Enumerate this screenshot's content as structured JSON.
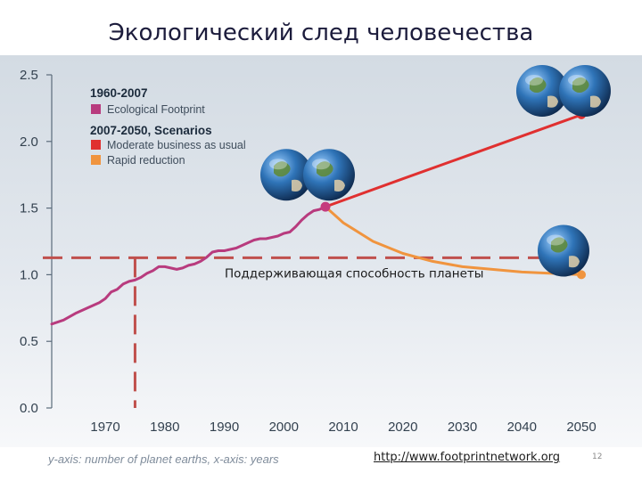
{
  "slide": {
    "title": "Экологический след человечества",
    "caption": "y-axis: number of planet earths, x-axis: years",
    "source_url": "http://www.footprintnetwork.org",
    "page_number": "12"
  },
  "chart_data": {
    "type": "line",
    "title": "",
    "xlabel": "",
    "ylabel": "",
    "xlim": [
      1961,
      2050
    ],
    "ylim": [
      0,
      2.5
    ],
    "x_ticks": [
      "1970",
      "1980",
      "1990",
      "2000",
      "2010",
      "2020",
      "2030",
      "2040",
      "2050"
    ],
    "y_ticks": [
      "0.0",
      "0.5",
      "1.0",
      "1.5",
      "2.0",
      "2.5"
    ],
    "legend": {
      "placement": "top-left",
      "groups": [
        {
          "heading": "1960-2007",
          "entries": [
            {
              "label": "Ecological Footprint",
              "color": "#b83b7e"
            }
          ]
        },
        {
          "heading": "2007-2050, Scenarios",
          "entries": [
            {
              "label": "Moderate business as usual",
              "color": "#e03030"
            },
            {
              "label": "Rapid reduction",
              "color": "#f0943e"
            }
          ]
        }
      ]
    },
    "series": [
      {
        "name": "Ecological Footprint",
        "color": "#b83b7e",
        "points": [
          [
            1961,
            0.63
          ],
          [
            1963,
            0.66
          ],
          [
            1965,
            0.71
          ],
          [
            1967,
            0.75
          ],
          [
            1969,
            0.79
          ],
          [
            1970,
            0.82
          ],
          [
            1971,
            0.87
          ],
          [
            1972,
            0.89
          ],
          [
            1973,
            0.93
          ],
          [
            1974,
            0.95
          ],
          [
            1975,
            0.96
          ],
          [
            1976,
            0.98
          ],
          [
            1977,
            1.01
          ],
          [
            1978,
            1.03
          ],
          [
            1979,
            1.06
          ],
          [
            1980,
            1.06
          ],
          [
            1981,
            1.05
          ],
          [
            1982,
            1.04
          ],
          [
            1983,
            1.05
          ],
          [
            1984,
            1.07
          ],
          [
            1985,
            1.08
          ],
          [
            1986,
            1.1
          ],
          [
            1987,
            1.13
          ],
          [
            1988,
            1.17
          ],
          [
            1989,
            1.18
          ],
          [
            1990,
            1.18
          ],
          [
            1991,
            1.19
          ],
          [
            1992,
            1.2
          ],
          [
            1993,
            1.22
          ],
          [
            1994,
            1.24
          ],
          [
            1995,
            1.26
          ],
          [
            1996,
            1.27
          ],
          [
            1997,
            1.27
          ],
          [
            1998,
            1.28
          ],
          [
            1999,
            1.29
          ],
          [
            2000,
            1.31
          ],
          [
            2001,
            1.32
          ],
          [
            2002,
            1.36
          ],
          [
            2003,
            1.41
          ],
          [
            2004,
            1.45
          ],
          [
            2005,
            1.48
          ],
          [
            2006,
            1.49
          ],
          [
            2007,
            1.51
          ]
        ]
      },
      {
        "name": "Moderate business as usual",
        "color": "#e03030",
        "points": [
          [
            2007,
            1.51
          ],
          [
            2020,
            1.72
          ],
          [
            2030,
            1.88
          ],
          [
            2040,
            2.04
          ],
          [
            2050,
            2.2
          ]
        ]
      },
      {
        "name": "Rapid reduction",
        "color": "#f0943e",
        "points": [
          [
            2007,
            1.51
          ],
          [
            2010,
            1.39
          ],
          [
            2015,
            1.25
          ],
          [
            2020,
            1.16
          ],
          [
            2025,
            1.1
          ],
          [
            2030,
            1.06
          ],
          [
            2035,
            1.04
          ],
          [
            2040,
            1.02
          ],
          [
            2045,
            1.01
          ],
          [
            2050,
            1.0
          ]
        ]
      }
    ],
    "annotations": {
      "capacity_label": "Поддерживающая способность планеты",
      "capacity_level": 1.0,
      "threshold_year": 1975,
      "line_color": "#c0504d",
      "globe_markers": [
        {
          "x": 2004,
          "y": 1.75,
          "count": 2
        },
        {
          "x": 2047,
          "y": 2.38,
          "count": 2
        },
        {
          "x": 2047,
          "y": 1.18,
          "count": 1
        }
      ]
    }
  }
}
